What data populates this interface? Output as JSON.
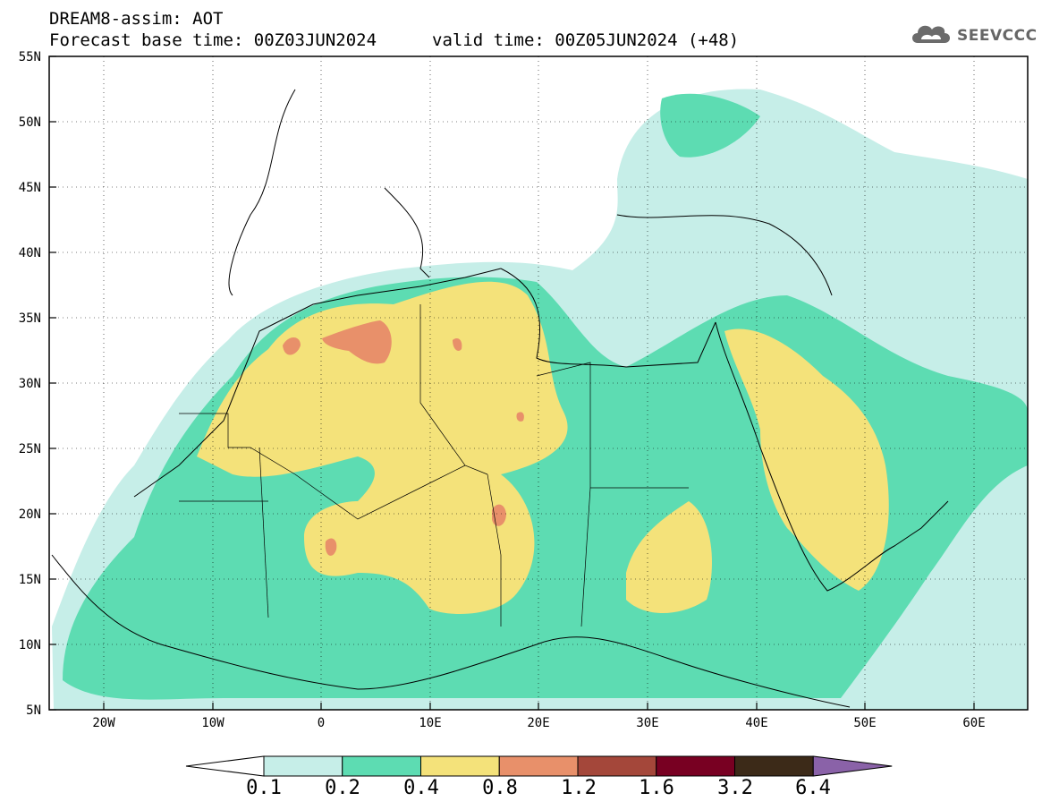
{
  "header": {
    "title": "DREAM8-assim: AOT",
    "base_time": "Forecast base time: 00Z03JUN2024",
    "valid_time": "valid time: 00Z05JUN2024 (+48)"
  },
  "logo": {
    "text": "SEEVCCC",
    "icon": "cloud-icon"
  },
  "map": {
    "lat_labels": [
      "55N",
      "50N",
      "45N",
      "40N",
      "35N",
      "30N",
      "25N",
      "20N",
      "15N",
      "10N",
      "5N"
    ],
    "lon_labels": [
      "20W",
      "10W",
      "0",
      "10E",
      "20E",
      "30E",
      "40E",
      "50E",
      "60E"
    ],
    "grid": true,
    "field_colors": {
      "ocean": "#ffffff",
      "land": "#ffffff",
      "border": "#000000"
    }
  },
  "colorbar": {
    "labels": [
      "0.1",
      "0.2",
      "0.4",
      "0.8",
      "1.2",
      "1.6",
      "3.2",
      "6.4"
    ],
    "colors": [
      "#ffffff",
      "#c6eee8",
      "#5ddcb2",
      "#f4e27a",
      "#e8906a",
      "#a4473a",
      "#780022",
      "#3c2a18",
      "#8a62a8"
    ]
  }
}
